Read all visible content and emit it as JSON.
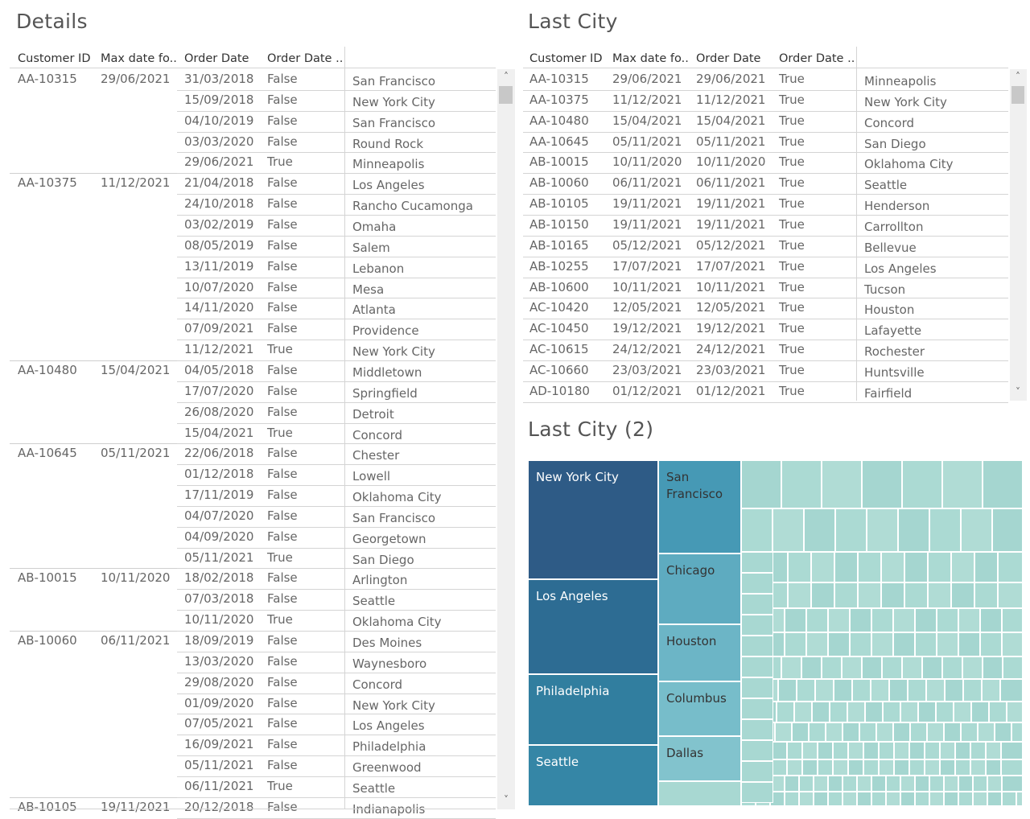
{
  "details": {
    "title": "Details",
    "headers": [
      "Customer ID",
      "Max date fo..",
      "Order Date",
      "Order Date .."
    ],
    "groups": [
      {
        "id": "AA-10315",
        "max": "29/06/2021",
        "rows": [
          [
            "31/03/2018",
            "False",
            "San Francisco"
          ],
          [
            "15/09/2018",
            "False",
            "New York City"
          ],
          [
            "04/10/2019",
            "False",
            "San Francisco"
          ],
          [
            "03/03/2020",
            "False",
            "Round Rock"
          ],
          [
            "29/06/2021",
            "True",
            "Minneapolis"
          ]
        ]
      },
      {
        "id": "AA-10375",
        "max": "11/12/2021",
        "rows": [
          [
            "21/04/2018",
            "False",
            "Los Angeles"
          ],
          [
            "24/10/2018",
            "False",
            "Rancho Cucamonga"
          ],
          [
            "03/02/2019",
            "False",
            "Omaha"
          ],
          [
            "08/05/2019",
            "False",
            "Salem"
          ],
          [
            "13/11/2019",
            "False",
            "Lebanon"
          ],
          [
            "10/07/2020",
            "False",
            "Mesa"
          ],
          [
            "14/11/2020",
            "False",
            "Atlanta"
          ],
          [
            "07/09/2021",
            "False",
            "Providence"
          ],
          [
            "11/12/2021",
            "True",
            "New York City"
          ]
        ]
      },
      {
        "id": "AA-10480",
        "max": "15/04/2021",
        "rows": [
          [
            "04/05/2018",
            "False",
            "Middletown"
          ],
          [
            "17/07/2020",
            "False",
            "Springfield"
          ],
          [
            "26/08/2020",
            "False",
            "Detroit"
          ],
          [
            "15/04/2021",
            "True",
            "Concord"
          ]
        ]
      },
      {
        "id": "AA-10645",
        "max": "05/11/2021",
        "rows": [
          [
            "22/06/2018",
            "False",
            "Chester"
          ],
          [
            "01/12/2018",
            "False",
            "Lowell"
          ],
          [
            "17/11/2019",
            "False",
            "Oklahoma City"
          ],
          [
            "04/07/2020",
            "False",
            "San Francisco"
          ],
          [
            "04/09/2020",
            "False",
            "Georgetown"
          ],
          [
            "05/11/2021",
            "True",
            "San Diego"
          ]
        ]
      },
      {
        "id": "AB-10015",
        "max": "10/11/2020",
        "rows": [
          [
            "18/02/2018",
            "False",
            "Arlington"
          ],
          [
            "07/03/2018",
            "False",
            "Seattle"
          ],
          [
            "10/11/2020",
            "True",
            "Oklahoma City"
          ]
        ]
      },
      {
        "id": "AB-10060",
        "max": "06/11/2021",
        "rows": [
          [
            "18/09/2019",
            "False",
            "Des Moines"
          ],
          [
            "13/03/2020",
            "False",
            "Waynesboro"
          ],
          [
            "29/08/2020",
            "False",
            "Concord"
          ],
          [
            "01/09/2020",
            "False",
            "New York City"
          ],
          [
            "07/05/2021",
            "False",
            "Los Angeles"
          ],
          [
            "16/09/2021",
            "False",
            "Philadelphia"
          ],
          [
            "05/11/2021",
            "False",
            "Greenwood"
          ],
          [
            "06/11/2021",
            "True",
            "Seattle"
          ]
        ]
      },
      {
        "id": "AB-10105",
        "max": "19/11/2021",
        "rows": [
          [
            "20/12/2018",
            "False",
            "Indianapolis"
          ]
        ]
      }
    ]
  },
  "last_city": {
    "title": "Last City",
    "headers": [
      "Customer ID",
      "Max date fo..",
      "Order Date",
      "Order Date .."
    ],
    "rows": [
      [
        "AA-10315",
        "29/06/2021",
        "29/06/2021",
        "True",
        "Minneapolis"
      ],
      [
        "AA-10375",
        "11/12/2021",
        "11/12/2021",
        "True",
        "New York City"
      ],
      [
        "AA-10480",
        "15/04/2021",
        "15/04/2021",
        "True",
        "Concord"
      ],
      [
        "AA-10645",
        "05/11/2021",
        "05/11/2021",
        "True",
        "San Diego"
      ],
      [
        "AB-10015",
        "10/11/2020",
        "10/11/2020",
        "True",
        "Oklahoma City"
      ],
      [
        "AB-10060",
        "06/11/2021",
        "06/11/2021",
        "True",
        "Seattle"
      ],
      [
        "AB-10105",
        "19/11/2021",
        "19/11/2021",
        "True",
        "Henderson"
      ],
      [
        "AB-10150",
        "19/11/2021",
        "19/11/2021",
        "True",
        "Carrollton"
      ],
      [
        "AB-10165",
        "05/12/2021",
        "05/12/2021",
        "True",
        "Bellevue"
      ],
      [
        "AB-10255",
        "17/07/2021",
        "17/07/2021",
        "True",
        "Los Angeles"
      ],
      [
        "AB-10600",
        "10/11/2021",
        "10/11/2021",
        "True",
        "Tucson"
      ],
      [
        "AC-10420",
        "12/05/2021",
        "12/05/2021",
        "True",
        "Houston"
      ],
      [
        "AC-10450",
        "19/12/2021",
        "19/12/2021",
        "True",
        "Lafayette"
      ],
      [
        "AC-10615",
        "24/12/2021",
        "24/12/2021",
        "True",
        "Rochester"
      ],
      [
        "AC-10660",
        "23/03/2021",
        "23/03/2021",
        "True",
        "Huntsville"
      ],
      [
        "AD-10180",
        "01/12/2021",
        "01/12/2021",
        "True",
        "Fairfield"
      ]
    ]
  },
  "treemap": {
    "title": "Last City (2)",
    "labeled_tiles": [
      {
        "label": "New York City",
        "color": "#2e5b86"
      },
      {
        "label": "Los Angeles",
        "color": "#2d6c93"
      },
      {
        "label": "Philadelphia",
        "color": "#317e9f"
      },
      {
        "label": "Seattle",
        "color": "#3586a6"
      },
      {
        "label": "San Francisco",
        "color": "#4699b5"
      },
      {
        "label": "Chicago",
        "color": "#5eabc0"
      },
      {
        "label": "Houston",
        "color": "#6cb5c6"
      },
      {
        "label": "Columbus",
        "color": "#77bdca"
      },
      {
        "label": "Dallas",
        "color": "#82c3cd"
      }
    ],
    "small_tile_color": "#a8d8d2"
  }
}
